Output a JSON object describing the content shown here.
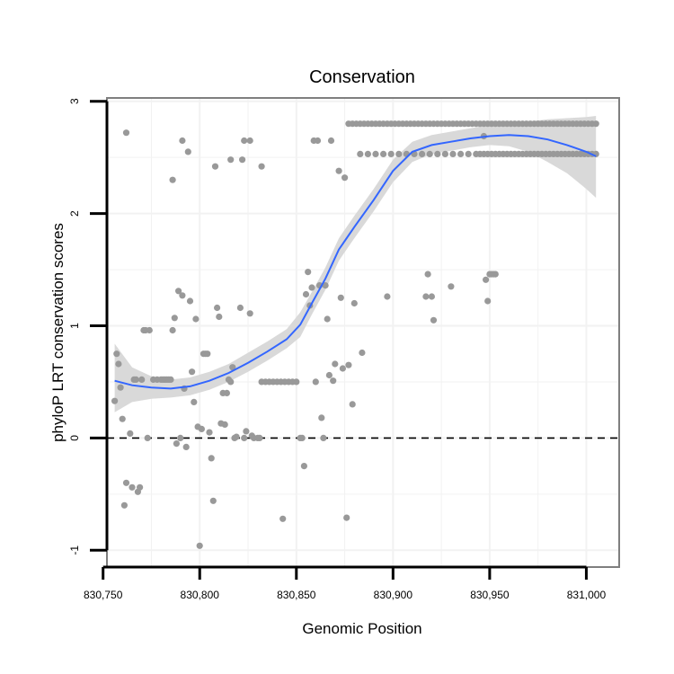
{
  "chart_data": {
    "type": "scatter",
    "title": "Conservation",
    "xlabel": "Genomic Position",
    "ylabel": "phyloP LRT conservation scores",
    "xlim": [
      830752,
      831017
    ],
    "ylim": [
      -1.15,
      3.03
    ],
    "xticks": [
      830750,
      830800,
      830850,
      830900,
      830950,
      831000
    ],
    "xtick_labels": [
      "830,750",
      "830,800",
      "830,850",
      "830,900",
      "830,950",
      "831,000"
    ],
    "yticks": [
      -1,
      0,
      1,
      2,
      3
    ],
    "ytick_labels": [
      "-1",
      "0",
      "1",
      "2",
      "3"
    ],
    "grid": true,
    "reference_line": {
      "y": 0,
      "style": "dashed",
      "color": "#000000"
    },
    "colors": {
      "points": "#999999",
      "smooth": "#3366ff",
      "ribbon": "#d9d9d9",
      "panel_border": "#7f7f7f",
      "grid": "#f2f2f2"
    },
    "points": [
      [
        830762,
        2.72
      ],
      [
        830791,
        2.65
      ],
      [
        830794,
        2.55
      ],
      [
        830786,
        2.3
      ],
      [
        830808,
        2.42
      ],
      [
        830816,
        2.48
      ],
      [
        830822,
        2.48
      ],
      [
        830823,
        2.65
      ],
      [
        830826,
        2.65
      ],
      [
        830832,
        2.42
      ],
      [
        830756,
        0.33
      ],
      [
        830757,
        0.75
      ],
      [
        830758,
        0.66
      ],
      [
        830759,
        0.45
      ],
      [
        830760,
        0.17
      ],
      [
        830761,
        -0.6
      ],
      [
        830762,
        -0.4
      ],
      [
        830764,
        0.04
      ],
      [
        830765,
        -0.44
      ],
      [
        830766,
        0.52
      ],
      [
        830767,
        0.52
      ],
      [
        830768,
        -0.48
      ],
      [
        830769,
        -0.44
      ],
      [
        830770,
        0.52
      ],
      [
        830771,
        0.96
      ],
      [
        830772,
        0.96
      ],
      [
        830773,
        0.0
      ],
      [
        830774,
        0.96
      ],
      [
        830776,
        0.52
      ],
      [
        830778,
        0.52
      ],
      [
        830780,
        0.52
      ],
      [
        830781,
        0.52
      ],
      [
        830782,
        0.52
      ],
      [
        830783,
        0.52
      ],
      [
        830784,
        0.52
      ],
      [
        830785,
        0.52
      ],
      [
        830786,
        0.96
      ],
      [
        830787,
        1.07
      ],
      [
        830788,
        -0.05
      ],
      [
        830789,
        1.31
      ],
      [
        830790,
        0.0
      ],
      [
        830791,
        1.27
      ],
      [
        830792,
        0.44
      ],
      [
        830793,
        -0.08
      ],
      [
        830795,
        1.22
      ],
      [
        830796,
        0.59
      ],
      [
        830797,
        0.32
      ],
      [
        830798,
        1.06
      ],
      [
        830799,
        0.1
      ],
      [
        830800,
        -0.96
      ],
      [
        830801,
        0.08
      ],
      [
        830802,
        0.75
      ],
      [
        830803,
        0.75
      ],
      [
        830804,
        0.75
      ],
      [
        830805,
        0.05
      ],
      [
        830806,
        -0.18
      ],
      [
        830807,
        -0.56
      ],
      [
        830809,
        1.16
      ],
      [
        830810,
        1.08
      ],
      [
        830811,
        0.13
      ],
      [
        830812,
        0.4
      ],
      [
        830813,
        0.12
      ],
      [
        830814,
        0.4
      ],
      [
        830815,
        0.52
      ],
      [
        830816,
        0.5
      ],
      [
        830817,
        0.63
      ],
      [
        830818,
        0.0
      ],
      [
        830819,
        0.01
      ],
      [
        830821,
        1.16
      ],
      [
        830823,
        0.0
      ],
      [
        830824,
        0.06
      ],
      [
        830826,
        1.11
      ],
      [
        830827,
        0.02
      ],
      [
        830828,
        0.0
      ],
      [
        830830,
        0.0
      ],
      [
        830831,
        0.0
      ],
      [
        830832,
        0.5
      ],
      [
        830834,
        0.5
      ],
      [
        830836,
        0.5
      ],
      [
        830838,
        0.5
      ],
      [
        830840,
        0.5
      ],
      [
        830842,
        0.5
      ],
      [
        830843,
        -0.72
      ],
      [
        830844,
        0.5
      ],
      [
        830846,
        0.5
      ],
      [
        830848,
        0.5
      ],
      [
        830850,
        0.5
      ],
      [
        830852,
        0.0
      ],
      [
        830853,
        0.0
      ],
      [
        830854,
        -0.25
      ],
      [
        830855,
        1.28
      ],
      [
        830856,
        1.48
      ],
      [
        830857,
        1.18
      ],
      [
        830858,
        1.34
      ],
      [
        830859,
        2.65
      ],
      [
        830860,
        0.5
      ],
      [
        830861,
        2.65
      ],
      [
        830862,
        1.36
      ],
      [
        830863,
        0.18
      ],
      [
        830864,
        0.0
      ],
      [
        830865,
        1.36
      ],
      [
        830866,
        1.06
      ],
      [
        830867,
        0.56
      ],
      [
        830868,
        2.65
      ],
      [
        830869,
        0.51
      ],
      [
        830870,
        0.66
      ],
      [
        830872,
        2.38
      ],
      [
        830873,
        1.25
      ],
      [
        830874,
        0.62
      ],
      [
        830875,
        2.32
      ],
      [
        830876,
        -0.71
      ],
      [
        830877,
        0.65
      ],
      [
        830879,
        0.3
      ],
      [
        830880,
        1.2
      ],
      [
        830884,
        0.76
      ],
      [
        830897,
        1.26
      ],
      [
        830917,
        1.26
      ],
      [
        830918,
        1.46
      ],
      [
        830920,
        1.26
      ],
      [
        830921,
        1.05
      ],
      [
        830930,
        1.35
      ],
      [
        830948,
        1.41
      ],
      [
        830949,
        1.22
      ],
      [
        830950,
        1.46
      ],
      [
        830951,
        1.46
      ],
      [
        830952,
        1.46
      ],
      [
        830953,
        1.46
      ],
      [
        830947,
        2.69
      ],
      [
        830877,
        2.8
      ],
      [
        830879,
        2.8
      ],
      [
        830881,
        2.8
      ],
      [
        830883,
        2.8
      ],
      [
        830885,
        2.8
      ],
      [
        830887,
        2.8
      ],
      [
        830889,
        2.8
      ],
      [
        830891,
        2.8
      ],
      [
        830893,
        2.8
      ],
      [
        830895,
        2.8
      ],
      [
        830897,
        2.8
      ],
      [
        830899,
        2.8
      ],
      [
        830901,
        2.8
      ],
      [
        830903,
        2.8
      ],
      [
        830905,
        2.8
      ],
      [
        830907,
        2.8
      ],
      [
        830909,
        2.8
      ],
      [
        830911,
        2.8
      ],
      [
        830913,
        2.8
      ],
      [
        830915,
        2.8
      ],
      [
        830917,
        2.8
      ],
      [
        830919,
        2.8
      ],
      [
        830921,
        2.8
      ],
      [
        830923,
        2.8
      ],
      [
        830925,
        2.8
      ],
      [
        830927,
        2.8
      ],
      [
        830929,
        2.8
      ],
      [
        830931,
        2.8
      ],
      [
        830933,
        2.8
      ],
      [
        830935,
        2.8
      ],
      [
        830937,
        2.8
      ],
      [
        830939,
        2.8
      ],
      [
        830941,
        2.8
      ],
      [
        830943,
        2.8
      ],
      [
        830945,
        2.8
      ],
      [
        830947,
        2.8
      ],
      [
        830949,
        2.8
      ],
      [
        830951,
        2.8
      ],
      [
        830953,
        2.8
      ],
      [
        830955,
        2.8
      ],
      [
        830957,
        2.8
      ],
      [
        830959,
        2.8
      ],
      [
        830961,
        2.8
      ],
      [
        830963,
        2.8
      ],
      [
        830965,
        2.8
      ],
      [
        830967,
        2.8
      ],
      [
        830969,
        2.8
      ],
      [
        830971,
        2.8
      ],
      [
        830973,
        2.8
      ],
      [
        830975,
        2.8
      ],
      [
        830977,
        2.8
      ],
      [
        830979,
        2.8
      ],
      [
        830981,
        2.8
      ],
      [
        830983,
        2.8
      ],
      [
        830985,
        2.8
      ],
      [
        830987,
        2.8
      ],
      [
        830989,
        2.8
      ],
      [
        830991,
        2.8
      ],
      [
        830993,
        2.8
      ],
      [
        830995,
        2.8
      ],
      [
        830997,
        2.8
      ],
      [
        830999,
        2.8
      ],
      [
        831001,
        2.8
      ],
      [
        831003,
        2.8
      ],
      [
        831005,
        2.8
      ],
      [
        830883,
        2.53
      ],
      [
        830887,
        2.53
      ],
      [
        830891,
        2.53
      ],
      [
        830895,
        2.53
      ],
      [
        830899,
        2.53
      ],
      [
        830903,
        2.53
      ],
      [
        830907,
        2.53
      ],
      [
        830911,
        2.53
      ],
      [
        830915,
        2.53
      ],
      [
        830919,
        2.53
      ],
      [
        830923,
        2.53
      ],
      [
        830927,
        2.53
      ],
      [
        830931,
        2.53
      ],
      [
        830935,
        2.53
      ],
      [
        830939,
        2.53
      ],
      [
        830943,
        2.53
      ],
      [
        830945,
        2.53
      ],
      [
        830947,
        2.53
      ],
      [
        830949,
        2.53
      ],
      [
        830951,
        2.53
      ],
      [
        830953,
        2.53
      ],
      [
        830955,
        2.53
      ],
      [
        830957,
        2.53
      ],
      [
        830959,
        2.53
      ],
      [
        830961,
        2.53
      ],
      [
        830963,
        2.53
      ],
      [
        830965,
        2.53
      ],
      [
        830967,
        2.53
      ],
      [
        830969,
        2.53
      ],
      [
        830971,
        2.53
      ],
      [
        830973,
        2.53
      ],
      [
        830975,
        2.53
      ],
      [
        830977,
        2.53
      ],
      [
        830979,
        2.53
      ],
      [
        830981,
        2.53
      ],
      [
        830983,
        2.53
      ],
      [
        830985,
        2.53
      ],
      [
        830987,
        2.53
      ],
      [
        830989,
        2.53
      ],
      [
        830991,
        2.53
      ],
      [
        830993,
        2.53
      ],
      [
        830995,
        2.53
      ],
      [
        830997,
        2.53
      ],
      [
        830999,
        2.53
      ],
      [
        831001,
        2.53
      ],
      [
        831003,
        2.53
      ],
      [
        831005,
        2.53
      ]
    ],
    "smooth": {
      "x": [
        830756,
        830765,
        830775,
        830785,
        830795,
        830805,
        830815,
        830825,
        830835,
        830845,
        830852,
        830858,
        830865,
        830872,
        830880,
        830890,
        830900,
        830910,
        830920,
        830930,
        830940,
        830950,
        830960,
        830970,
        830980,
        830990,
        831000,
        831005
      ],
      "y": [
        0.51,
        0.47,
        0.45,
        0.44,
        0.46,
        0.51,
        0.58,
        0.67,
        0.77,
        0.88,
        1.01,
        1.2,
        1.42,
        1.68,
        1.88,
        2.12,
        2.38,
        2.55,
        2.61,
        2.64,
        2.67,
        2.69,
        2.7,
        2.69,
        2.66,
        2.61,
        2.55,
        2.51
      ],
      "lower": [
        0.23,
        0.32,
        0.35,
        0.36,
        0.38,
        0.43,
        0.5,
        0.59,
        0.69,
        0.8,
        0.9,
        1.1,
        1.32,
        1.58,
        1.78,
        2.02,
        2.28,
        2.46,
        2.53,
        2.56,
        2.59,
        2.61,
        2.6,
        2.55,
        2.46,
        2.36,
        2.22,
        2.14
      ],
      "upper": [
        0.84,
        0.63,
        0.55,
        0.52,
        0.54,
        0.59,
        0.66,
        0.76,
        0.86,
        0.97,
        1.12,
        1.3,
        1.52,
        1.78,
        1.98,
        2.22,
        2.48,
        2.64,
        2.7,
        2.73,
        2.76,
        2.79,
        2.81,
        2.82,
        2.84,
        2.85,
        2.86,
        2.87
      ]
    }
  }
}
